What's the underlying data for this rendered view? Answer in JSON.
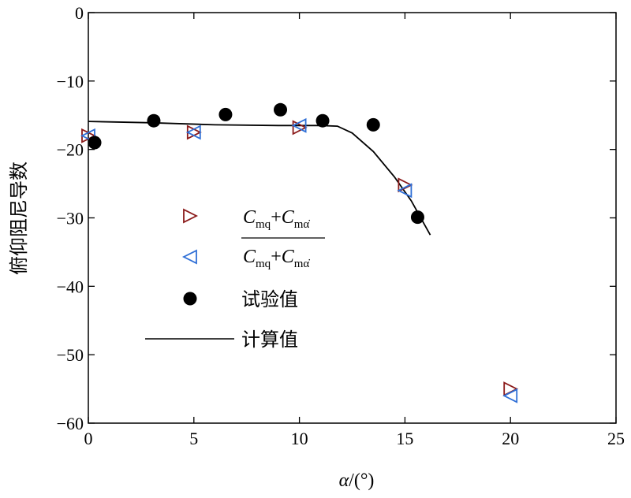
{
  "chart_data": {
    "type": "scatter",
    "xlabel_var": "α",
    "xlabel_unit": "/(°)",
    "ylabel": "俯仰阻尼导数",
    "xlim": [
      0,
      25
    ],
    "ylim": [
      -60,
      0
    ],
    "x_ticks": [
      0,
      5,
      10,
      15,
      20,
      25
    ],
    "y_ticks": [
      0,
      -10,
      -20,
      -30,
      -40,
      -50,
      -60
    ],
    "x_tick_labels": [
      "0",
      "5",
      "10",
      "15",
      "20",
      "25"
    ],
    "y_tick_labels": [
      "0",
      "−10",
      "−20",
      "−30",
      "−40",
      "−50",
      "−60"
    ],
    "legend_position": "center-left",
    "series": [
      {
        "marker": "triangle-right",
        "color": "#8B1A1A",
        "legend_formula": {
          "c1": "C",
          "s1": "mq",
          "plus": "+",
          "c2": "C",
          "s2": "mα̇"
        },
        "points": [
          [
            0,
            -18
          ],
          [
            5,
            -17.5
          ],
          [
            10,
            -16.8
          ],
          [
            15,
            -25.2
          ],
          [
            20,
            -55
          ]
        ]
      },
      {
        "marker": "triangle-left",
        "color": "#2F6FD6",
        "legend_formula": {
          "c1": "C",
          "s1": "mq",
          "plus": "+",
          "c2": "C",
          "s2": "mα̇"
        },
        "points": [
          [
            0,
            -18
          ],
          [
            5,
            -17.5
          ],
          [
            10,
            -16.5
          ],
          [
            15,
            -26
          ],
          [
            20,
            -56
          ]
        ]
      },
      {
        "name": "试验值",
        "marker": "circle",
        "color": "#000000",
        "points": [
          [
            0.3,
            -19
          ],
          [
            3.1,
            -15.8
          ],
          [
            6.5,
            -14.9
          ],
          [
            9.1,
            -14.2
          ],
          [
            11.1,
            -15.8
          ],
          [
            13.5,
            -16.4
          ],
          [
            15.6,
            -29.9
          ]
        ]
      },
      {
        "name": "计算值",
        "marker": "line",
        "color": "#000000",
        "points": [
          [
            0,
            -15.9
          ],
          [
            3,
            -16.1
          ],
          [
            6,
            -16.4
          ],
          [
            9,
            -16.5
          ],
          [
            11,
            -16.5
          ],
          [
            11.8,
            -16.6
          ],
          [
            12.5,
            -17.6
          ],
          [
            13.5,
            -20.3
          ],
          [
            14.5,
            -24.0
          ],
          [
            15.3,
            -27.5
          ],
          [
            16.2,
            -32.5
          ]
        ]
      }
    ]
  }
}
